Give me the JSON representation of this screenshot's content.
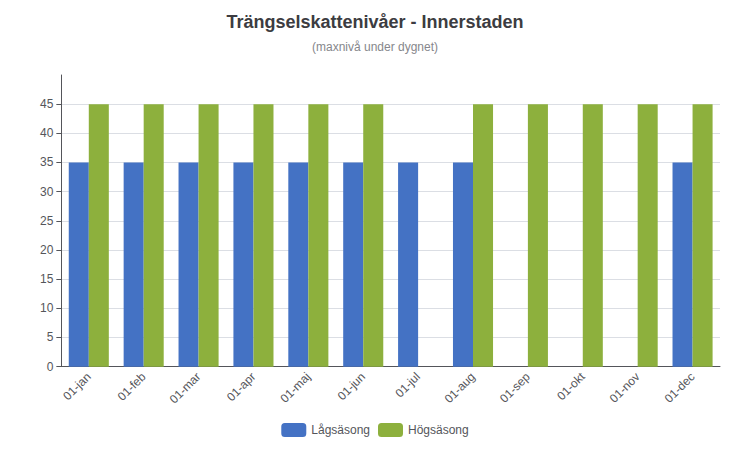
{
  "chart_data": {
    "type": "bar",
    "title": "Trängselskattenivåer - Innerstaden",
    "subtitle": "(maxnivå under dygnet)",
    "categories": [
      "01-jan",
      "01-feb",
      "01-mar",
      "01-apr",
      "01-maj",
      "01-jun",
      "01-jul",
      "01-aug",
      "01-sep",
      "01-okt",
      "01-nov",
      "01-dec"
    ],
    "series": [
      {
        "name": "Lågsäsong",
        "color": "#4472C4",
        "values": [
          35,
          35,
          35,
          35,
          35,
          35,
          35,
          35,
          0,
          0,
          0,
          35
        ]
      },
      {
        "name": "Högsäsong",
        "color": "#8DB03D",
        "values": [
          45,
          45,
          45,
          45,
          45,
          45,
          0,
          45,
          45,
          45,
          45,
          45
        ]
      }
    ],
    "ylim": [
      0,
      50
    ],
    "yticks": [
      0,
      5,
      10,
      15,
      20,
      25,
      30,
      35,
      40,
      45
    ],
    "grid": true,
    "legend": "bottom"
  }
}
